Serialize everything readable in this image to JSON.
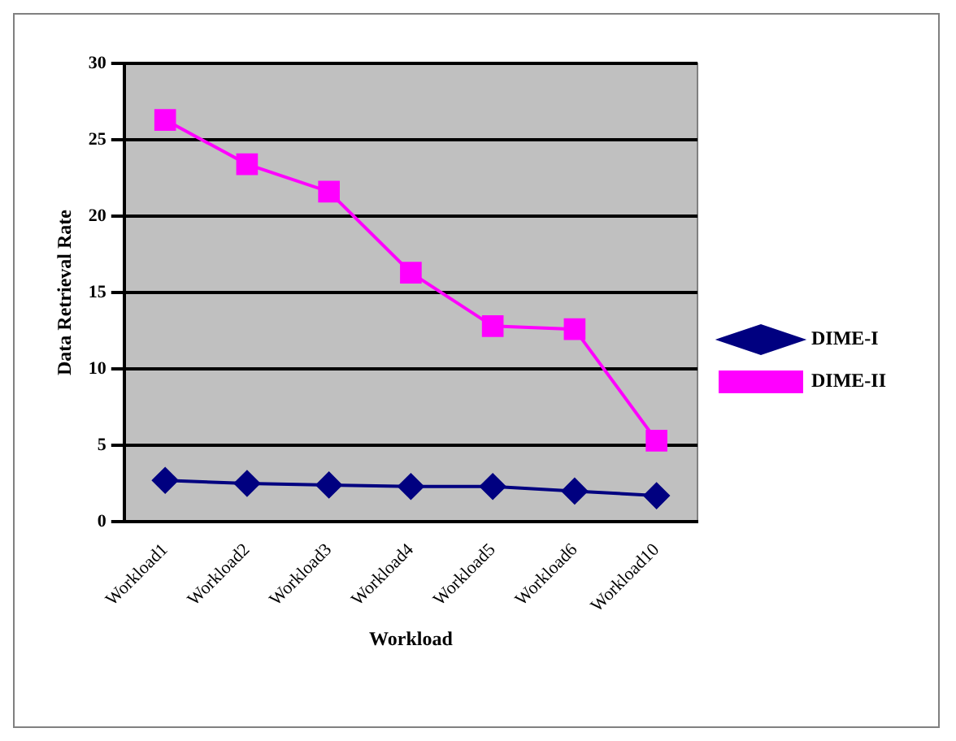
{
  "chart_data": {
    "type": "line",
    "xlabel": "Workload",
    "ylabel": "Data Retrieval Rate",
    "categories": [
      "Workload1",
      "Workload2",
      "Workload3",
      "Workload4",
      "Workload5",
      "Workload6",
      "Workload10"
    ],
    "series": [
      {
        "name": "DIME-I",
        "color": "#000080",
        "marker": "diamond",
        "values": [
          2.7,
          2.5,
          2.4,
          2.3,
          2.3,
          2.0,
          1.7
        ]
      },
      {
        "name": "DIME-II",
        "color": "#ff00ff",
        "marker": "square",
        "values": [
          26.3,
          23.4,
          21.6,
          16.3,
          12.8,
          12.6,
          5.3
        ]
      }
    ],
    "ylim": [
      0,
      30
    ],
    "yticks": [
      0,
      5,
      10,
      15,
      20,
      25,
      30
    ],
    "grid": "y",
    "legend": "right"
  }
}
